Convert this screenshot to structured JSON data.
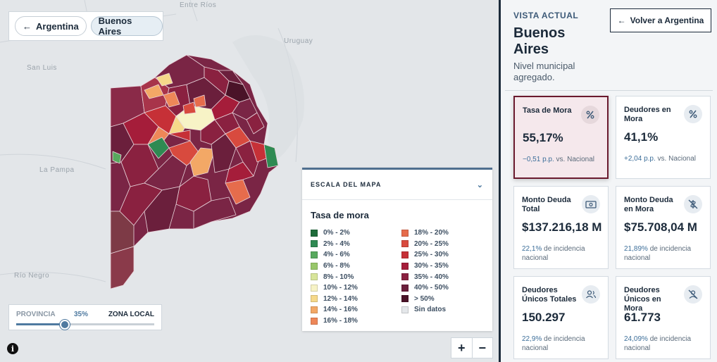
{
  "map": {
    "places": [
      "Entre Ríos",
      "San Luis",
      "Uruguay",
      "La Pampa",
      "Río Negro"
    ]
  },
  "breadcrumb": {
    "back_label": "Argentina",
    "current_label": "Buenos Aires"
  },
  "legend": {
    "header": "ESCALA DEL MAPA",
    "title": "Tasa de mora",
    "items": [
      {
        "label": "0% - 2%",
        "color": "#1e6b3a"
      },
      {
        "label": "2% - 4%",
        "color": "#2f8a52"
      },
      {
        "label": "4% - 6%",
        "color": "#58a95e"
      },
      {
        "label": "6% - 8%",
        "color": "#98c76a"
      },
      {
        "label": "8% - 10%",
        "color": "#d8e59a"
      },
      {
        "label": "10% - 12%",
        "color": "#f7f3c6"
      },
      {
        "label": "12% - 14%",
        "color": "#f6d98a"
      },
      {
        "label": "14% - 16%",
        "color": "#f3a866"
      },
      {
        "label": "16% - 18%",
        "color": "#ee8758"
      },
      {
        "label": "18% - 20%",
        "color": "#e66c4c"
      },
      {
        "label": "20% - 25%",
        "color": "#d84a3e"
      },
      {
        "label": "25% - 30%",
        "color": "#c63037"
      },
      {
        "label": "30% - 35%",
        "color": "#a51d3a"
      },
      {
        "label": "35% - 40%",
        "color": "#8a2140"
      },
      {
        "label": "40% - 50%",
        "color": "#6b1f3c"
      },
      {
        "label": "> 50%",
        "color": "#4a1328"
      },
      {
        "label": "Sin datos",
        "color": "#e4e7ea"
      }
    ]
  },
  "slider": {
    "left_label": "PROVINCIA",
    "right_label": "ZONA LOCAL",
    "value_label": "35%",
    "value": 0.35
  },
  "zoom": {
    "in": "+",
    "out": "−"
  },
  "info": "i",
  "panel": {
    "kicker": "VISTA ACTUAL",
    "title": "Buenos Aires",
    "subtitle": "Nivel municipal agregado.",
    "back_button": "Volver a Argentina",
    "cards": [
      {
        "label": "Tasa de Mora",
        "value": "55,17%",
        "delta": "−0,51 p.p.",
        "foot": " vs. Nacional",
        "icon": "percent-icon"
      },
      {
        "label": "Deudores en Mora",
        "value": "41,1%",
        "delta": "+2,04 p.p.",
        "foot": " vs. Nacional",
        "icon": "percent-icon"
      },
      {
        "label": "Monto Deuda Total",
        "value": "$137.216,18 M",
        "delta": "22,1%",
        "foot": " de incidencia nacional",
        "icon": "money-icon"
      },
      {
        "label": "Monto Deuda en Mora",
        "value": "$75.708,04 M",
        "delta": "21,89%",
        "foot": " de incidencia nacional",
        "icon": "money-off-icon"
      },
      {
        "label": "Deudores Únicos Totales",
        "value": "150.297",
        "delta": "22,9%",
        "foot": " de incidencia nacional",
        "icon": "users-icon"
      },
      {
        "label": "Deudores Únicos en Mora",
        "value": "61.773",
        "delta": "24,09%",
        "foot": " de incidencia nacional",
        "icon": "user-off-icon"
      }
    ]
  }
}
